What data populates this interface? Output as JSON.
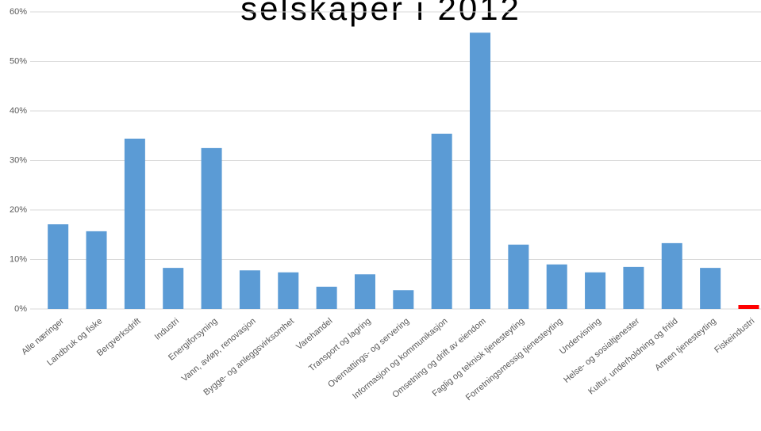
{
  "chart_data": {
    "type": "bar",
    "title": "selskaper i 2012",
    "categories": [
      "Alle næringer",
      "Landbruk og fiske",
      "Bergverksdrift",
      "Industri",
      "Energiforsyning",
      "Vann, avløp, renovasjon",
      "Bygge- og anleggsvirksomhet",
      "Varehandel",
      "Transport og lagring",
      "Overnattings- og servering",
      "Informasjon og kommunikasjon",
      "Omsetning og drift av eiendom",
      "Faglig og teknisk tjenesteyting",
      "Forretningsmessig tjenesteyting",
      "Undervisning",
      "Helse- og sosialtjenester",
      "Kultur, underholdning og fritid",
      "Annen tjenesteyting",
      "Fiskeindustri"
    ],
    "values": [
      17.1,
      15.7,
      34.4,
      8.3,
      32.5,
      7.8,
      7.4,
      4.5,
      7.0,
      3.8,
      35.4,
      55.8,
      13.0,
      9.0,
      7.4,
      8.5,
      13.3,
      8.3,
      0.8
    ],
    "colors": [
      "#5b9bd5",
      "#5b9bd5",
      "#5b9bd5",
      "#5b9bd5",
      "#5b9bd5",
      "#5b9bd5",
      "#5b9bd5",
      "#5b9bd5",
      "#5b9bd5",
      "#5b9bd5",
      "#5b9bd5",
      "#5b9bd5",
      "#5b9bd5",
      "#5b9bd5",
      "#5b9bd5",
      "#5b9bd5",
      "#5b9bd5",
      "#5b9bd5",
      "#ff0000"
    ],
    "ylim": [
      0,
      60
    ],
    "yticks": [
      {
        "value": 0,
        "label": "0%"
      },
      {
        "value": 10,
        "label": "10%"
      },
      {
        "value": 20,
        "label": "20%"
      },
      {
        "value": 30,
        "label": "30%"
      },
      {
        "value": 40,
        "label": "40%"
      },
      {
        "value": 50,
        "label": "50%"
      },
      {
        "value": 60,
        "label": "60%"
      }
    ],
    "grid": true
  }
}
